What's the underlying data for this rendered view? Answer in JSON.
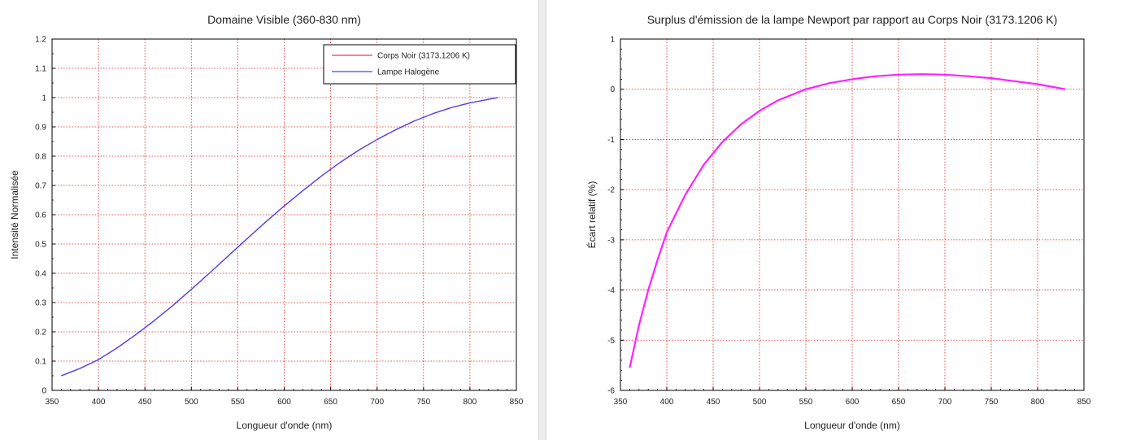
{
  "chart_data": [
    {
      "type": "line",
      "title": "Domaine Visible (360-830 nm)",
      "xlabel": "Longueur d'onde (nm)",
      "ylabel": "Intensité Normalisée",
      "xlim": [
        350,
        850
      ],
      "ylim": [
        0,
        1.2
      ],
      "xticks": [
        350,
        400,
        450,
        500,
        550,
        600,
        650,
        700,
        750,
        800,
        850
      ],
      "xtick_labels": [
        "350",
        "400",
        "450",
        "500",
        "550",
        "600",
        "650",
        "700",
        "750",
        "800",
        "850"
      ],
      "yticks": [
        0,
        0.1,
        0.2,
        0.3,
        0.4,
        0.5,
        0.6,
        0.7,
        0.8,
        0.9,
        1,
        1.1,
        1.2
      ],
      "ytick_labels": [
        "0",
        "0.1",
        "0.2",
        "0.3",
        "0.4",
        "0.5",
        "0.6",
        "0.7",
        "0.8",
        "0.9",
        "1",
        "1.1",
        "1.2"
      ],
      "grid": true,
      "legend_position": "top-right",
      "x": [
        360,
        380,
        400,
        420,
        440,
        460,
        480,
        500,
        520,
        540,
        560,
        580,
        600,
        620,
        640,
        660,
        680,
        700,
        720,
        740,
        760,
        780,
        800,
        830
      ],
      "series": [
        {
          "name": "Corps Noir (3173.1206 K)",
          "color": "#ff3355",
          "values": [
            0.05,
            0.075,
            0.105,
            0.145,
            0.19,
            0.238,
            0.29,
            0.345,
            0.402,
            0.46,
            0.518,
            0.575,
            0.63,
            0.682,
            0.732,
            0.778,
            0.82,
            0.857,
            0.89,
            0.92,
            0.945,
            0.966,
            0.982,
            1.0
          ]
        },
        {
          "name": "Lampe Halogène",
          "color": "#4444ff",
          "values": [
            0.05,
            0.075,
            0.105,
            0.145,
            0.19,
            0.238,
            0.29,
            0.345,
            0.402,
            0.46,
            0.518,
            0.575,
            0.63,
            0.682,
            0.732,
            0.778,
            0.82,
            0.857,
            0.89,
            0.92,
            0.945,
            0.966,
            0.982,
            1.0
          ]
        }
      ]
    },
    {
      "type": "line",
      "title": "Surplus d'émission de la lampe Newport par rapport au Corps Noir (3173.1206 K)",
      "xlabel": "Longueur d'onde (nm)",
      "ylabel": "Écart relatif (%)",
      "xlim": [
        350,
        850
      ],
      "ylim": [
        -6,
        1
      ],
      "xticks": [
        350,
        400,
        450,
        500,
        550,
        600,
        650,
        700,
        750,
        800,
        850
      ],
      "xtick_labels": [
        "350",
        "400",
        "450",
        "500",
        "550",
        "600",
        "650",
        "700",
        "750",
        "800",
        "850"
      ],
      "yticks": [
        -6,
        -5,
        -4,
        -3,
        -2,
        -1,
        0,
        1
      ],
      "ytick_labels": [
        "-6",
        "-5",
        "-4",
        "-3",
        "-2",
        "-1",
        "0",
        "1"
      ],
      "grid": true,
      "x": [
        360,
        370,
        380,
        390,
        400,
        420,
        440,
        460,
        480,
        500,
        520,
        550,
        575,
        600,
        625,
        650,
        675,
        700,
        725,
        750,
        775,
        800,
        830
      ],
      "series": [
        {
          "name": "Écart relatif",
          "color": "#ff22ff",
          "values": [
            -5.55,
            -4.7,
            -4.0,
            -3.4,
            -2.85,
            -2.1,
            -1.5,
            -1.05,
            -0.7,
            -0.43,
            -0.22,
            0.0,
            0.12,
            0.2,
            0.26,
            0.29,
            0.3,
            0.29,
            0.26,
            0.22,
            0.16,
            0.1,
            0.0
          ]
        }
      ]
    }
  ]
}
